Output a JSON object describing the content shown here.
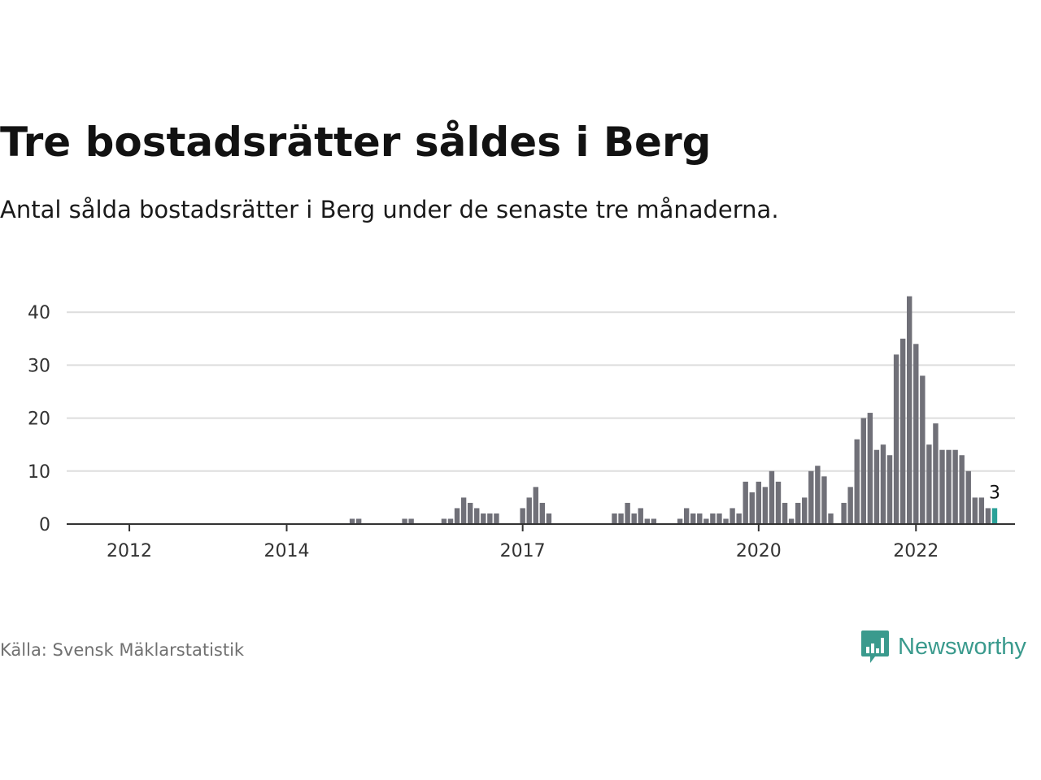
{
  "title": "Tre bostadsrätter såldes i Berg",
  "subtitle": "Antal sålda bostadsrätter i Berg under de senaste tre månaderna.",
  "source": "Källa: Svensk Mäklarstatistik",
  "brand": {
    "name": "Newsworthy",
    "color": "#3a9a8d",
    "icon": "bar-chart-speech-bubble-icon"
  },
  "colors": {
    "bar": "#707078",
    "highlight": "#2aa198",
    "grid": "#dddddd",
    "axis": "#333333"
  },
  "chart_data": {
    "type": "bar",
    "start": "2011-07",
    "x_ticks": [
      {
        "label": "2012",
        "month": "2012-01"
      },
      {
        "label": "2014",
        "month": "2014-01"
      },
      {
        "label": "2017",
        "month": "2017-01"
      },
      {
        "label": "2020",
        "month": "2020-01"
      },
      {
        "label": "2022",
        "month": "2022-01"
      }
    ],
    "y_ticks": [
      0,
      10,
      20,
      30,
      40
    ],
    "ylim": [
      0,
      43
    ],
    "grid": true,
    "values": [
      0,
      0,
      0,
      0,
      0,
      0,
      0,
      0,
      0,
      0,
      0,
      0,
      0,
      0,
      0,
      0,
      0,
      0,
      0,
      0,
      0,
      0,
      0,
      0,
      0,
      0,
      0,
      0,
      0,
      0,
      0,
      0,
      0,
      0,
      0,
      0,
      0,
      0,
      0,
      0,
      1,
      1,
      0,
      0,
      0,
      0,
      0,
      0,
      1,
      1,
      0,
      0,
      0,
      0,
      1,
      1,
      3,
      5,
      4,
      3,
      2,
      2,
      2,
      0,
      0,
      0,
      3,
      5,
      7,
      4,
      2,
      0,
      0,
      0,
      0,
      0,
      0,
      0,
      0,
      0,
      2,
      2,
      4,
      2,
      3,
      1,
      1,
      0,
      0,
      0,
      1,
      3,
      2,
      2,
      1,
      2,
      2,
      1,
      3,
      2,
      8,
      6,
      8,
      7,
      10,
      8,
      4,
      1,
      4,
      5,
      10,
      11,
      9,
      2,
      0,
      4,
      7,
      16,
      20,
      21,
      14,
      15,
      13,
      32,
      35,
      43,
      34,
      28,
      15,
      19,
      14,
      14,
      14,
      13,
      10,
      5,
      5,
      3,
      3
    ],
    "highlight_last": true,
    "highlight_label": "3"
  }
}
